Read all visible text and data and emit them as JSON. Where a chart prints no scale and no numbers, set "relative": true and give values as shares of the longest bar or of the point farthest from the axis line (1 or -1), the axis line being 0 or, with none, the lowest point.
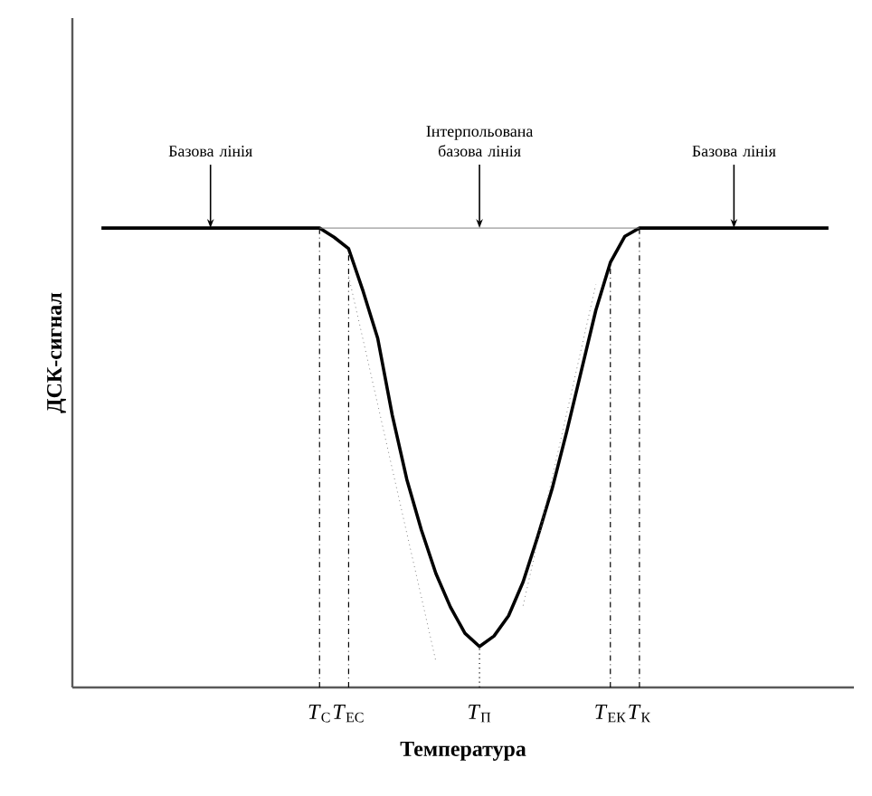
{
  "chart_data": {
    "type": "line",
    "relative": true,
    "xlabel": "Температура",
    "ylabel": "ДСК-сигнал",
    "tick_labels": "x",
    "categories": [
      null,
      null,
      null,
      null,
      null,
      null,
      null,
      null,
      null,
      null,
      null,
      null,
      null,
      null,
      null,
      "*T*$_{С}$",
      null,
      "*T*$_{ЕС}$",
      null,
      null,
      null,
      null,
      null,
      null,
      null,
      null,
      "*T*$_{П}$",
      null,
      null,
      null,
      null,
      null,
      null,
      null,
      null,
      "*T*$_{ЕК}$",
      null,
      "*T*$_{К}$",
      null,
      null,
      null,
      null,
      null,
      null,
      null,
      null,
      null,
      null,
      null,
      null,
      null
    ],
    "series": [
      {
        "color": "#000000",
        "line_style": "solid",
        "values": [
          1,
          1,
          1,
          1,
          1,
          1,
          1,
          1,
          1,
          1,
          1,
          1,
          1,
          1,
          1,
          1,
          0.98,
          0.955,
          0.862,
          0.76,
          0.593,
          0.453,
          0.343,
          0.248,
          0.175,
          0.118,
          0.089,
          0.112,
          0.156,
          0.23,
          0.328,
          0.433,
          0.557,
          0.689,
          0.821,
          0.925,
          0.982,
          1,
          1,
          1,
          1,
          1,
          1,
          1,
          1,
          1,
          1,
          1,
          1,
          1,
          1
        ]
      },
      {
        "color": "#808080",
        "line_style": "solid",
        "values": [
          null,
          null,
          null,
          null,
          null,
          null,
          null,
          null,
          null,
          null,
          null,
          null,
          null,
          null,
          null,
          1,
          1,
          1,
          1,
          1,
          1,
          1,
          1,
          1,
          1,
          1,
          1,
          1,
          1,
          1,
          1,
          1,
          1,
          1,
          1,
          1,
          1,
          1,
          null,
          null,
          null,
          null,
          null,
          null,
          null,
          null,
          null,
          null,
          null,
          null,
          null
        ]
      },
      {
        "color": "#808080",
        "line_style": "dotted",
        "values": [
          null,
          null,
          null,
          null,
          null,
          null,
          null,
          null,
          null,
          null,
          null,
          null,
          null,
          null,
          null,
          null,
          null,
          0.895,
          0.756,
          0.616,
          0.476,
          0.336,
          0.197,
          0.057,
          null,
          null,
          null,
          null,
          null,
          null,
          null,
          null,
          null,
          null,
          null,
          null,
          null,
          null,
          null,
          null,
          null,
          null,
          null,
          null,
          null,
          null,
          null,
          null,
          null,
          null,
          null
        ]
      },
      {
        "color": "#808080",
        "line_style": "dotted",
        "values": [
          null,
          null,
          null,
          null,
          null,
          null,
          null,
          null,
          null,
          null,
          null,
          null,
          null,
          null,
          null,
          null,
          null,
          null,
          null,
          null,
          null,
          null,
          null,
          null,
          null,
          null,
          null,
          null,
          null,
          0.178,
          0.318,
          0.457,
          0.597,
          0.737,
          0.877,
          null,
          null,
          null,
          null,
          null,
          null,
          null,
          null,
          null,
          null,
          null,
          null,
          null,
          null,
          null,
          null
        ]
      }
    ],
    "ref_lines": [
      {
        "axis": "x",
        "value": "*T*$_{С}$",
        "line_style": "dashdot"
      },
      {
        "axis": "x",
        "value": "*T*$_{ЕС}$",
        "line_style": "dashdot"
      },
      {
        "axis": "x",
        "value": "*T*$_{П}$",
        "line_style": "dotted"
      },
      {
        "axis": "x",
        "value": "*T*$_{ЕК}$",
        "line_style": "dashdot"
      },
      {
        "axis": "x",
        "value": "*T*$_{К}$",
        "line_style": "dashdot"
      }
    ],
    "annotations": [
      "Базова лінія",
      "Інтерпольована базова лінія",
      "Базова лінія"
    ]
  }
}
